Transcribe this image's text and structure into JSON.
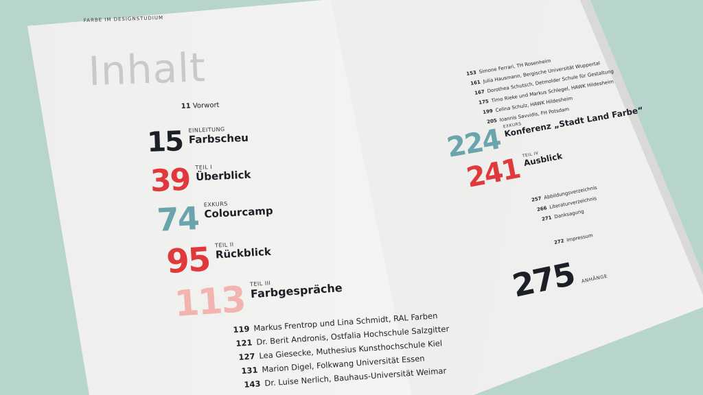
{
  "running_header": "FARBE IM DESIGNSTUDIUM",
  "title": "Inhalt",
  "colors": {
    "dark": "#1c1f26",
    "red": "#e0393b",
    "teal": "#6aa5ad",
    "pink": "#f2b4ae",
    "background": "#b8d5cd"
  },
  "left": {
    "vorwort": {
      "page": "11",
      "title": "Vorwort"
    },
    "sections": [
      {
        "page": "15",
        "label": "EINLEITUNG",
        "title": "Farbscheu"
      },
      {
        "page": "39",
        "label": "TEIL I",
        "title": "Überblick"
      },
      {
        "page": "74",
        "label": "EXKURS",
        "title": "Colourcamp"
      },
      {
        "page": "95",
        "label": "TEIL II",
        "title": "Rückblick"
      },
      {
        "page": "113",
        "label": "TEIL III",
        "title": "Farbgespräche"
      }
    ],
    "entries": [
      {
        "page": "119",
        "text": "Markus Frentrop und Lina Schmidt, RAL Farben"
      },
      {
        "page": "121",
        "text": "Dr. Berit Andronis, Ostfalia Hochschule Salzgitter"
      },
      {
        "page": "127",
        "text": "Lea Giesecke, Muthesius Kunsthochschule Kiel"
      },
      {
        "page": "131",
        "text": "Marion Digel, Folkwang Universität Essen"
      },
      {
        "page": "143",
        "text": "Dr. Luise Nerlich, Bauhaus-Universität Weimar"
      }
    ]
  },
  "right": {
    "entries": [
      {
        "page": "153",
        "text": "Simone Ferrari, TH Rosenheim"
      },
      {
        "page": "161",
        "text": "Julia Hausmann, Bergische Universität Wuppertal"
      },
      {
        "page": "167",
        "text": "Dorothea Schutsch, Detmolder Schule für Gestaltung"
      },
      {
        "page": "175",
        "text": "Timo Rieke und Markus Schlegel, HAWK Hildesheim"
      },
      {
        "page": "199",
        "text": "Celina Schulz, HAWK Hildesheim"
      },
      {
        "page": "205",
        "text": "Ioannis Savvidis, FH Potsdam"
      }
    ],
    "sections": [
      {
        "page": "224",
        "label": "EXKURS",
        "title": "Konferenz „Stadt Land Farbe“"
      },
      {
        "page": "241",
        "label": "TEIL IV",
        "title": "Ausblick"
      }
    ],
    "appendix_entries": [
      {
        "page": "257",
        "text": "Abbildungsverzeichnis"
      },
      {
        "page": "266",
        "text": "Literaturverzeichnis"
      },
      {
        "page": "271",
        "text": "Danksagung"
      },
      {
        "page": "272",
        "text": "Impressum"
      }
    ],
    "appendix": {
      "page": "275",
      "label": "ANHÄNGE"
    }
  }
}
